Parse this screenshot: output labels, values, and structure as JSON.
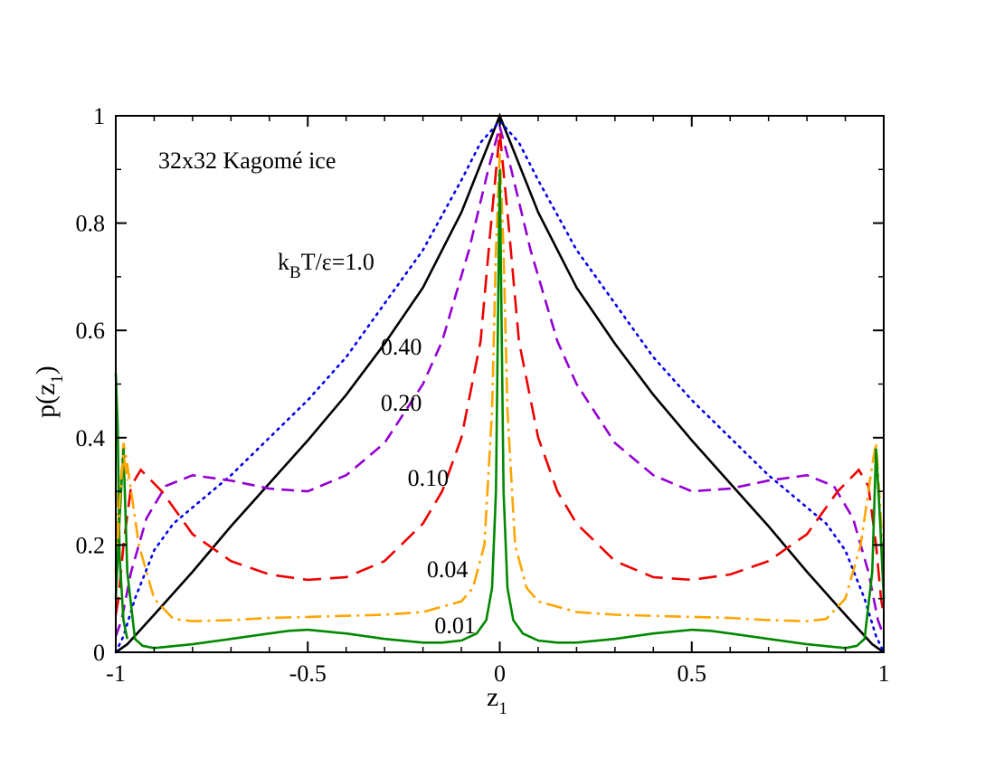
{
  "chart_data": {
    "type": "line",
    "title": "32x32 Kagomé ice",
    "xlabel": "z",
    "xlabel_sub": "1",
    "ylabel_main": "p(z",
    "ylabel_sub": "1",
    "ylabel_close": ")",
    "xlim": [
      -1,
      1
    ],
    "ylim": [
      0,
      1
    ],
    "x_ticks": [
      {
        "value": -1,
        "label": "-1"
      },
      {
        "value": -0.5,
        "label": "-0.5"
      },
      {
        "value": 0,
        "label": "0"
      },
      {
        "value": 0.5,
        "label": "0.5"
      },
      {
        "value": 1,
        "label": "1"
      }
    ],
    "y_ticks": [
      {
        "value": 0,
        "label": "0"
      },
      {
        "value": 0.2,
        "label": "0.2"
      },
      {
        "value": 0.4,
        "label": "0.4"
      },
      {
        "value": 0.6,
        "label": "0.6"
      },
      {
        "value": 0.8,
        "label": "0.8"
      },
      {
        "value": 1,
        "label": "1"
      }
    ],
    "grid": false,
    "legend_label_prefix": "k",
    "legend_label_sub": "B",
    "legend_label_suffix": "T/ε=1.0",
    "series": [
      {
        "name": "1.0",
        "label": "k_BT/ε=1.0",
        "color": "#000000",
        "dash": "solid",
        "points": [
          [
            0,
            1.0
          ],
          [
            0.1,
            0.82
          ],
          [
            0.2,
            0.68
          ],
          [
            0.3,
            0.575
          ],
          [
            0.4,
            0.48
          ],
          [
            0.5,
            0.395
          ],
          [
            0.6,
            0.315
          ],
          [
            0.7,
            0.235
          ],
          [
            0.8,
            0.15
          ],
          [
            0.9,
            0.07
          ],
          [
            0.97,
            0.015
          ],
          [
            1.0,
            0.0
          ]
        ]
      },
      {
        "name": "0.40",
        "label": "0.40",
        "color": "#0000ee",
        "dash": "2 6",
        "points": [
          [
            0,
            0.99
          ],
          [
            0.05,
            0.95
          ],
          [
            0.1,
            0.88
          ],
          [
            0.2,
            0.75
          ],
          [
            0.3,
            0.65
          ],
          [
            0.4,
            0.55
          ],
          [
            0.5,
            0.47
          ],
          [
            0.6,
            0.4
          ],
          [
            0.7,
            0.33
          ],
          [
            0.8,
            0.27
          ],
          [
            0.85,
            0.24
          ],
          [
            0.9,
            0.19
          ],
          [
            0.95,
            0.1
          ],
          [
            0.98,
            0.03
          ],
          [
            1.0,
            0.0
          ]
        ]
      },
      {
        "name": "0.20",
        "label": "0.20",
        "color": "#9400d3",
        "dash": "14 8",
        "points": [
          [
            0,
            0.98
          ],
          [
            0.03,
            0.9
          ],
          [
            0.08,
            0.75
          ],
          [
            0.15,
            0.58
          ],
          [
            0.2,
            0.5
          ],
          [
            0.3,
            0.39
          ],
          [
            0.4,
            0.33
          ],
          [
            0.5,
            0.3
          ],
          [
            0.6,
            0.305
          ],
          [
            0.7,
            0.32
          ],
          [
            0.8,
            0.33
          ],
          [
            0.87,
            0.31
          ],
          [
            0.92,
            0.25
          ],
          [
            0.96,
            0.15
          ],
          [
            0.985,
            0.06
          ],
          [
            1.0,
            0.03
          ]
        ]
      },
      {
        "name": "0.10",
        "label": "0.10",
        "color": "#ee0000",
        "dash": "20 10",
        "points": [
          [
            0,
            0.97
          ],
          [
            0.02,
            0.82
          ],
          [
            0.05,
            0.58
          ],
          [
            0.1,
            0.4
          ],
          [
            0.15,
            0.3
          ],
          [
            0.2,
            0.24
          ],
          [
            0.3,
            0.17
          ],
          [
            0.4,
            0.14
          ],
          [
            0.5,
            0.135
          ],
          [
            0.6,
            0.145
          ],
          [
            0.7,
            0.17
          ],
          [
            0.8,
            0.22
          ],
          [
            0.88,
            0.3
          ],
          [
            0.935,
            0.34
          ],
          [
            0.96,
            0.31
          ],
          [
            0.98,
            0.2
          ],
          [
            0.993,
            0.1
          ],
          [
            1.0,
            0.07
          ]
        ]
      },
      {
        "name": "0.04",
        "label": "0.04",
        "color": "#ffa500",
        "dash": "18 6 3 6",
        "points": [
          [
            0,
            0.93
          ],
          [
            0.01,
            0.75
          ],
          [
            0.02,
            0.45
          ],
          [
            0.04,
            0.2
          ],
          [
            0.07,
            0.12
          ],
          [
            0.1,
            0.095
          ],
          [
            0.2,
            0.075
          ],
          [
            0.3,
            0.07
          ],
          [
            0.4,
            0.068
          ],
          [
            0.5,
            0.066
          ],
          [
            0.6,
            0.064
          ],
          [
            0.7,
            0.06
          ],
          [
            0.8,
            0.058
          ],
          [
            0.85,
            0.062
          ],
          [
            0.9,
            0.1
          ],
          [
            0.94,
            0.2
          ],
          [
            0.97,
            0.35
          ],
          [
            0.98,
            0.39
          ],
          [
            0.99,
            0.28
          ],
          [
            1.0,
            0.15
          ]
        ]
      },
      {
        "name": "0.01",
        "label": "0.01",
        "color": "#008800",
        "dash": "solid",
        "points": [
          [
            0,
            0.9
          ],
          [
            0.005,
            0.6
          ],
          [
            0.01,
            0.3
          ],
          [
            0.02,
            0.12
          ],
          [
            0.035,
            0.06
          ],
          [
            0.06,
            0.035
          ],
          [
            0.1,
            0.022
          ],
          [
            0.15,
            0.018
          ],
          [
            0.2,
            0.018
          ],
          [
            0.3,
            0.025
          ],
          [
            0.4,
            0.035
          ],
          [
            0.5,
            0.042
          ],
          [
            0.55,
            0.04
          ],
          [
            0.6,
            0.035
          ],
          [
            0.7,
            0.025
          ],
          [
            0.8,
            0.015
          ],
          [
            0.9,
            0.008
          ],
          [
            0.93,
            0.012
          ],
          [
            0.95,
            0.025
          ],
          [
            0.97,
            0.15
          ],
          [
            0.98,
            0.38
          ],
          [
            0.99,
            0.25
          ],
          [
            1.0,
            0.1
          ]
        ]
      }
    ],
    "left_spikes": [
      {
        "series": "0.01",
        "points": [
          [
            -1.0,
            0.52
          ],
          [
            -0.995,
            0.42
          ],
          [
            -0.99,
            0.18
          ],
          [
            -0.98,
            0.06
          ],
          [
            -0.97,
            0.025
          ]
        ]
      },
      {
        "series": "0.04",
        "points": [
          [
            -1.0,
            0.3
          ],
          [
            -0.995,
            0.2
          ],
          [
            -0.99,
            0.28
          ],
          [
            -0.98,
            0.37
          ],
          [
            -0.97,
            0.32
          ]
        ]
      }
    ],
    "annotations": [
      {
        "text": "0.40",
        "x": -0.31,
        "y": 0.555
      },
      {
        "text": "0.20",
        "x": -0.31,
        "y": 0.45
      },
      {
        "text": "0.10",
        "x": -0.24,
        "y": 0.31
      },
      {
        "text": "0.04",
        "x": -0.19,
        "y": 0.14
      },
      {
        "text": "0.01",
        "x": -0.17,
        "y": 0.035
      }
    ]
  }
}
